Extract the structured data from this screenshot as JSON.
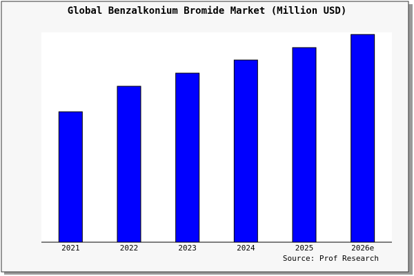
{
  "chart_data": {
    "type": "bar",
    "title": "Global Benzalkonium Bromide Market (Million USD)",
    "categories": [
      "2021",
      "2022",
      "2023",
      "2024",
      "2025",
      "2026e"
    ],
    "values": [
      189,
      226,
      245,
      264,
      282,
      301
    ],
    "color": "#0000ff",
    "ylim": [
      0,
      304
    ],
    "source": "Source: Prof Research"
  }
}
